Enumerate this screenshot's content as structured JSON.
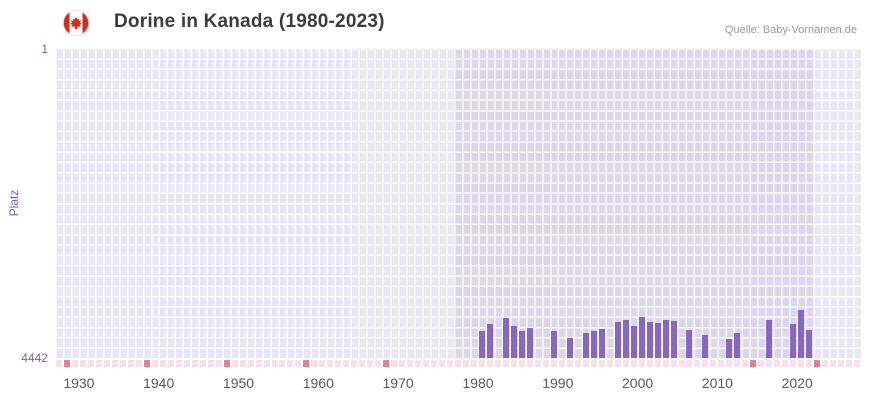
{
  "header": {
    "title": "Dorine in Kanada (1980-2023)",
    "source": "Quelle: Baby-Vornamen.de",
    "flag_icon": "canada-flag"
  },
  "chart_data": {
    "type": "bar",
    "title": "Dorine in Kanada (1980-2023)",
    "ylabel": "Platz",
    "y_ticks": {
      "top": "1",
      "bottom": "4442"
    },
    "y_min": 1,
    "y_max": 4442,
    "y_inverted": true,
    "x_domain": [
      1927,
      2028
    ],
    "x_ticks": [
      1930,
      1940,
      1950,
      1960,
      1970,
      1980,
      1990,
      2000,
      2010,
      2020
    ],
    "highlight_band": {
      "from": 1977,
      "to": 2022
    },
    "bars": [
      {
        "year": 1980,
        "rank": 4050
      },
      {
        "year": 1981,
        "rank": 3960
      },
      {
        "year": 1983,
        "rank": 3870
      },
      {
        "year": 1984,
        "rank": 3990
      },
      {
        "year": 1985,
        "rank": 4060
      },
      {
        "year": 1986,
        "rank": 4010
      },
      {
        "year": 1989,
        "rank": 4060
      },
      {
        "year": 1991,
        "rank": 4160
      },
      {
        "year": 1993,
        "rank": 4080
      },
      {
        "year": 1994,
        "rank": 4050
      },
      {
        "year": 1995,
        "rank": 4030
      },
      {
        "year": 1997,
        "rank": 3930
      },
      {
        "year": 1998,
        "rank": 3900
      },
      {
        "year": 1999,
        "rank": 3980
      },
      {
        "year": 2000,
        "rank": 3860
      },
      {
        "year": 2001,
        "rank": 3920
      },
      {
        "year": 2002,
        "rank": 3940
      },
      {
        "year": 2003,
        "rank": 3890
      },
      {
        "year": 2004,
        "rank": 3910
      },
      {
        "year": 2006,
        "rank": 4040
      },
      {
        "year": 2008,
        "rank": 4110
      },
      {
        "year": 2011,
        "rank": 4170
      },
      {
        "year": 2012,
        "rank": 4090
      },
      {
        "year": 2016,
        "rank": 3900
      },
      {
        "year": 2019,
        "rank": 3950
      },
      {
        "year": 2020,
        "rank": 3760
      },
      {
        "year": 2021,
        "rank": 4040
      }
    ],
    "baseline_strip": {
      "from": 1927,
      "to": 2027,
      "marker_years": [
        1928,
        1938,
        1948,
        1958,
        1968,
        2014,
        2022
      ]
    },
    "legend_position": "none",
    "grid": true,
    "colors": {
      "bar": "#8767bf",
      "plot_bg": "#eae7f5",
      "band_bg": "#dcd6ec",
      "grid": "#ffffff",
      "strip_light": "#f9dfe9",
      "strip_marker": "#e57f91",
      "axis_text": "#7d5fad",
      "tick_text": "#5a5564",
      "flag_red": "#d52b1e"
    }
  }
}
